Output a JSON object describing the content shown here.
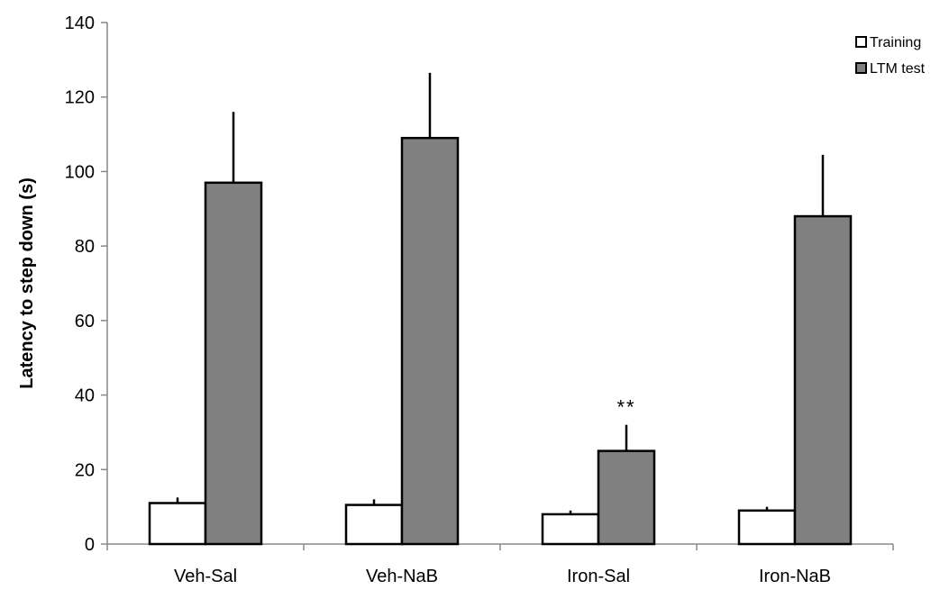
{
  "chart_data": {
    "type": "bar",
    "title": "",
    "xlabel": "",
    "ylabel": "Latency to step down (s)",
    "ylim": [
      0,
      140
    ],
    "yticks": [
      0,
      20,
      40,
      60,
      80,
      100,
      120,
      140
    ],
    "grid": false,
    "legend_position": "top-right",
    "categories": [
      "Veh-Sal",
      "Veh-NaB",
      "Iron-Sal",
      "Iron-NaB"
    ],
    "series": [
      {
        "name": "Training",
        "color": "#ffffff",
        "values": [
          11,
          10.5,
          8,
          9
        ],
        "errors": [
          1.5,
          1.5,
          1,
          1
        ]
      },
      {
        "name": "LTM test",
        "color": "#808080",
        "values": [
          97,
          109,
          25,
          88
        ],
        "errors": [
          19,
          17.5,
          7,
          16.5
        ]
      }
    ],
    "annotations": [
      {
        "category": "Iron-Sal",
        "series": "LTM test",
        "text": "**"
      }
    ]
  }
}
